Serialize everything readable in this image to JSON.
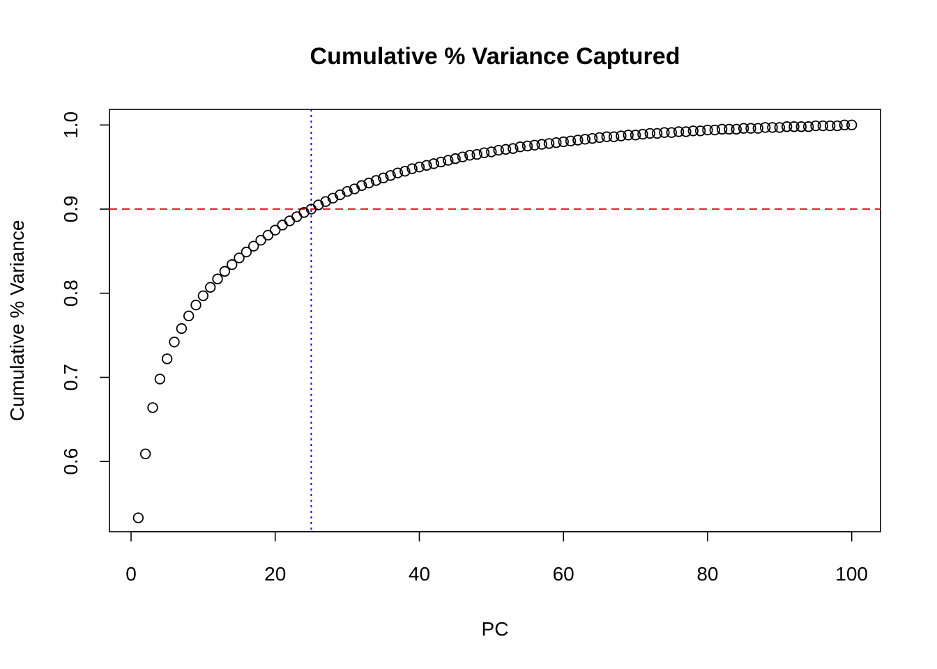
{
  "chart_data": {
    "type": "scatter",
    "title": "Cumulative % Variance Captured",
    "xlabel": "PC",
    "ylabel": "Cumulative % Variance",
    "xlim": [
      -3,
      104
    ],
    "ylim": [
      0.5165,
      1.0185
    ],
    "x_ticks": [
      0,
      20,
      40,
      60,
      80,
      100
    ],
    "y_ticks": [
      0.6,
      0.7,
      0.8,
      0.9,
      1.0
    ],
    "x_tick_labels": [
      "0",
      "20",
      "40",
      "60",
      "80",
      "100"
    ],
    "y_tick_labels": [
      "0.6",
      "0.7",
      "0.8",
      "0.9",
      "1.0"
    ],
    "grid": false,
    "marker": "open-circle",
    "hline": {
      "y": 0.9,
      "color": "#e8202a",
      "style": "dashed"
    },
    "vline": {
      "x": 25,
      "color": "#1010d0",
      "style": "dotted"
    },
    "x": [
      1,
      2,
      3,
      4,
      5,
      6,
      7,
      8,
      9,
      10,
      11,
      12,
      13,
      14,
      15,
      16,
      17,
      18,
      19,
      20,
      21,
      22,
      23,
      24,
      25,
      26,
      27,
      28,
      29,
      30,
      31,
      32,
      33,
      34,
      35,
      36,
      37,
      38,
      39,
      40,
      41,
      42,
      43,
      44,
      45,
      46,
      47,
      48,
      49,
      50,
      51,
      52,
      53,
      54,
      55,
      56,
      57,
      58,
      59,
      60,
      61,
      62,
      63,
      64,
      65,
      66,
      67,
      68,
      69,
      70,
      71,
      72,
      73,
      74,
      75,
      76,
      77,
      78,
      79,
      80,
      81,
      82,
      83,
      84,
      85,
      86,
      87,
      88,
      89,
      90,
      91,
      92,
      93,
      94,
      95,
      96,
      97,
      98,
      99,
      100
    ],
    "y": [
      0.533,
      0.609,
      0.664,
      0.698,
      0.722,
      0.742,
      0.758,
      0.773,
      0.786,
      0.797,
      0.807,
      0.817,
      0.826,
      0.834,
      0.842,
      0.849,
      0.856,
      0.863,
      0.869,
      0.875,
      0.881,
      0.886,
      0.891,
      0.896,
      0.9,
      0.905,
      0.909,
      0.913,
      0.917,
      0.921,
      0.924,
      0.928,
      0.931,
      0.934,
      0.937,
      0.94,
      0.943,
      0.945,
      0.948,
      0.95,
      0.952,
      0.954,
      0.956,
      0.958,
      0.96,
      0.962,
      0.964,
      0.965,
      0.967,
      0.968,
      0.97,
      0.971,
      0.972,
      0.974,
      0.975,
      0.976,
      0.977,
      0.978,
      0.979,
      0.98,
      0.981,
      0.982,
      0.983,
      0.984,
      0.985,
      0.986,
      0.986,
      0.987,
      0.988,
      0.988,
      0.989,
      0.99,
      0.99,
      0.991,
      0.991,
      0.992,
      0.992,
      0.993,
      0.993,
      0.994,
      0.994,
      0.995,
      0.995,
      0.995,
      0.996,
      0.996,
      0.996,
      0.997,
      0.997,
      0.997,
      0.998,
      0.998,
      0.998,
      0.998,
      0.999,
      0.999,
      0.999,
      0.999,
      1.0,
      1.0
    ]
  }
}
